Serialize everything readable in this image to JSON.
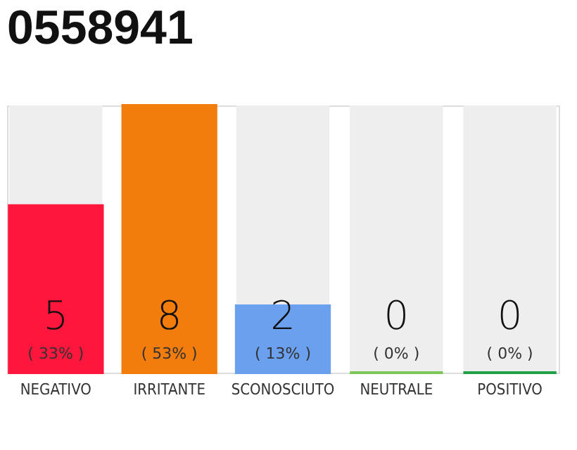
{
  "chart_data": {
    "type": "bar",
    "title": "0558941",
    "categories": [
      "NEGATIVO",
      "IRRITANTE",
      "SCONOSCIUTO",
      "NEUTRALE",
      "POSITIVO"
    ],
    "values": [
      5,
      8,
      2,
      0,
      0
    ],
    "colors": [
      "#ff163c",
      "#f27c0c",
      "#6aa0ee",
      "#7cc65a",
      "#22a045"
    ],
    "tick_labels": "x",
    "data_labels": true,
    "annotations": [
      "( 33% )",
      "( 53% )",
      "( 13% )",
      "( 0% )",
      "( 0% )"
    ]
  }
}
